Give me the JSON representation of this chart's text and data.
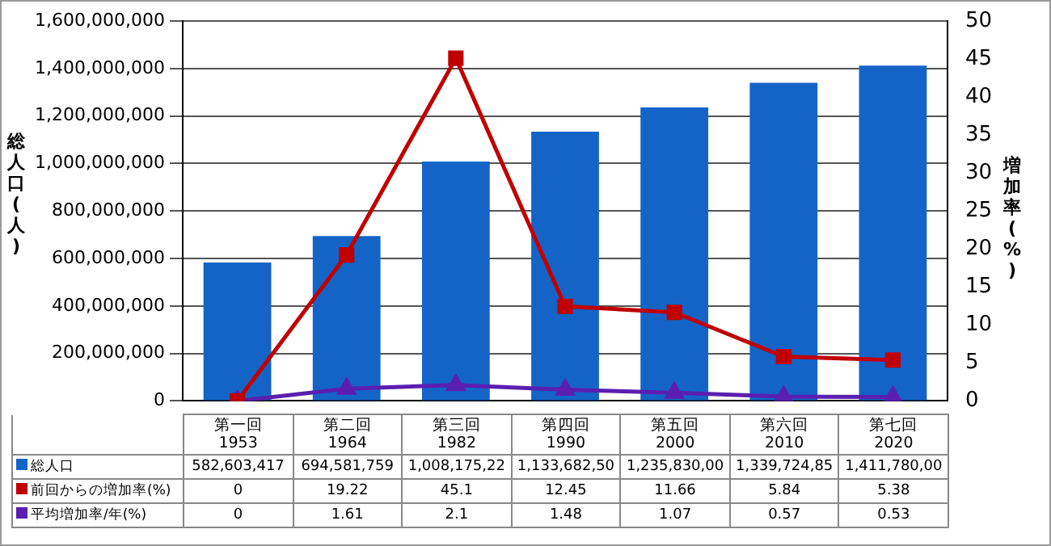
{
  "chart_data": {
    "type": "bar",
    "ylabel": "総人口(人)",
    "y2label": "増加率(%)",
    "categories": [
      "第一回\n1953",
      "第二回\n1964",
      "第三回\n1982",
      "第四回\n1990",
      "第五回\n2000",
      "第六回\n2010",
      "第七回\n2020"
    ],
    "series": [
      {
        "name": "総人口",
        "color": "#1464c8",
        "values": [
          582603417,
          694581759,
          1008175288,
          1133682501,
          1235830000,
          1339724852,
          1411780000
        ],
        "value_labels": [
          "582,603,417",
          "694,581,759",
          "1,008,175,22",
          "1,133,682,50",
          "1,235,830,00",
          "1,339,724,85",
          "1,411,780,00"
        ]
      },
      {
        "name": "前回からの増加率(%)",
        "type": "line",
        "axis": "y2",
        "color": "#c00000",
        "marker": "square",
        "values": [
          0,
          19.22,
          45.1,
          12.45,
          11.66,
          5.84,
          5.38
        ],
        "value_labels": [
          "0",
          "19.22",
          "45.1",
          "12.45",
          "11.66",
          "5.84",
          "5.38"
        ]
      },
      {
        "name": "平均増加率/年(%)",
        "type": "line",
        "axis": "y2",
        "color": "#5a1fb0",
        "marker": "triangle",
        "values": [
          0,
          1.61,
          2.1,
          1.48,
          1.07,
          0.57,
          0.53
        ],
        "value_labels": [
          "0",
          "1.61",
          "2.1",
          "1.48",
          "1.07",
          "0.57",
          "0.53"
        ]
      }
    ],
    "ylim": [
      0,
      1600000000
    ],
    "yticks": [
      {
        "value": 0,
        "label": "0"
      },
      {
        "value": 200000000,
        "label": "200,000,000"
      },
      {
        "value": 400000000,
        "label": "400,000,000"
      },
      {
        "value": 600000000,
        "label": "600,000,000"
      },
      {
        "value": 800000000,
        "label": "800,000,000"
      },
      {
        "value": 1000000000,
        "label": "1,000,000,000"
      },
      {
        "value": 1200000000,
        "label": "1,200,000,000"
      },
      {
        "value": 1400000000,
        "label": "1,400,000,000"
      },
      {
        "value": 1600000000,
        "label": "1,600,000,000"
      }
    ],
    "y2lim": [
      0,
      50
    ],
    "y2ticks": [
      0,
      5,
      10,
      15,
      20,
      25,
      30,
      35,
      40,
      45,
      50
    ],
    "grid": "y",
    "legend": "bottom left"
  }
}
